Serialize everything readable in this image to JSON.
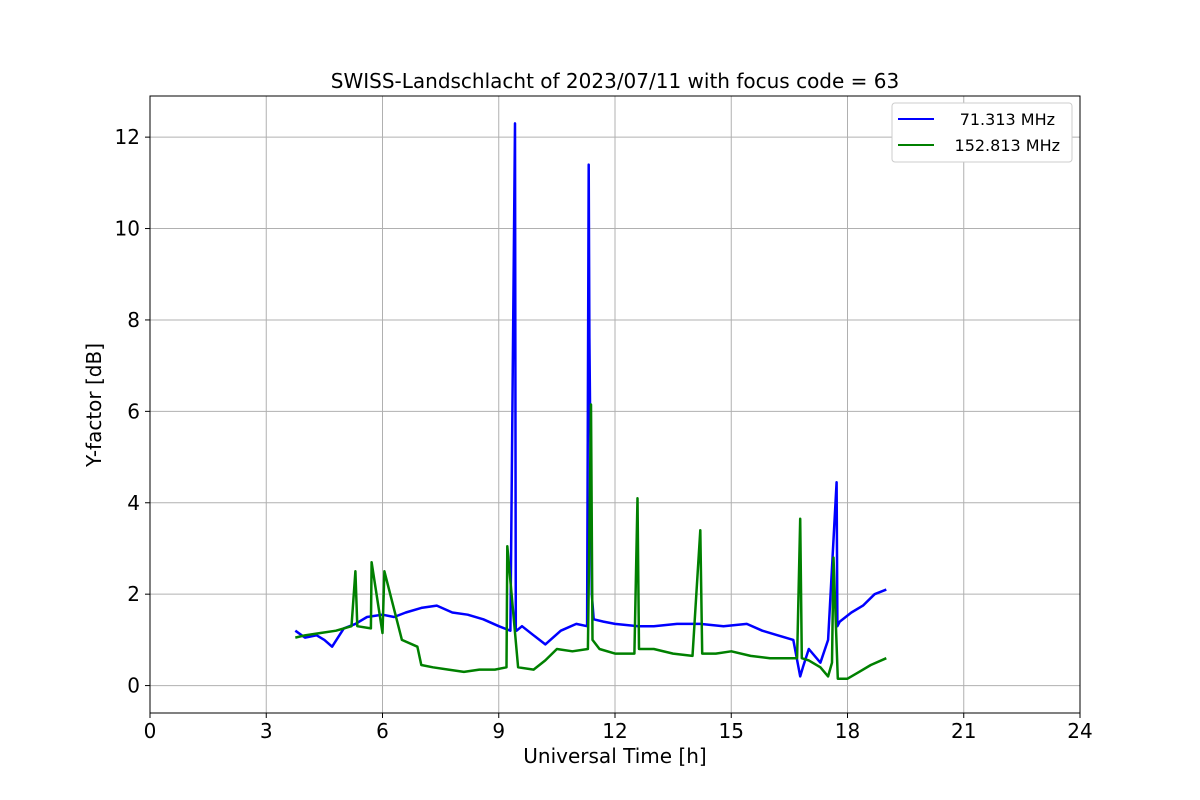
{
  "chart_data": {
    "type": "line",
    "title": "SWISS-Landschlacht of 2023/07/11 with focus code = 63",
    "xlabel": "Universal Time [h]",
    "ylabel": "Y-factor [dB]",
    "xlim": [
      0,
      24
    ],
    "ylim": [
      -0.6,
      12.9
    ],
    "xticks": [
      0,
      3,
      6,
      9,
      12,
      15,
      18,
      21,
      24
    ],
    "yticks": [
      0,
      2,
      4,
      6,
      8,
      10,
      12
    ],
    "grid": true,
    "legend_position": "top-right",
    "series": [
      {
        "name": "71.313 MHz",
        "color": "#0000ff",
        "x": [
          3.75,
          4.0,
          4.3,
          4.5,
          4.7,
          5.0,
          5.3,
          5.6,
          6.0,
          6.3,
          6.6,
          7.0,
          7.4,
          7.8,
          8.2,
          8.6,
          9.0,
          9.3,
          9.42,
          9.44,
          9.46,
          9.6,
          9.9,
          10.2,
          10.6,
          11.0,
          11.28,
          11.32,
          11.34,
          11.4,
          11.45,
          11.7,
          12.0,
          12.6,
          13.0,
          13.6,
          14.2,
          14.8,
          15.4,
          15.8,
          16.2,
          16.6,
          16.78,
          16.85,
          17.0,
          17.3,
          17.5,
          17.72,
          17.74,
          17.8,
          18.1,
          18.4,
          18.7,
          19.0
        ],
        "values": [
          1.2,
          1.05,
          1.1,
          1.0,
          0.85,
          1.25,
          1.35,
          1.5,
          1.55,
          1.5,
          1.6,
          1.7,
          1.75,
          1.6,
          1.55,
          1.45,
          1.3,
          1.2,
          12.3,
          1.25,
          1.2,
          1.3,
          1.1,
          0.9,
          1.2,
          1.35,
          1.3,
          11.4,
          7.6,
          2.0,
          1.45,
          1.4,
          1.35,
          1.3,
          1.3,
          1.35,
          1.35,
          1.3,
          1.35,
          1.2,
          1.1,
          1.0,
          0.2,
          0.4,
          0.8,
          0.5,
          1.0,
          4.45,
          1.3,
          1.4,
          1.6,
          1.75,
          2.0,
          2.1
        ]
      },
      {
        "name": "152.813 MHz",
        "color": "#008000",
        "x": [
          3.75,
          4.0,
          4.4,
          4.8,
          5.2,
          5.3,
          5.35,
          5.7,
          5.72,
          6.0,
          6.05,
          6.5,
          6.9,
          7.0,
          7.3,
          7.7,
          8.1,
          8.5,
          8.9,
          9.2,
          9.22,
          9.5,
          9.9,
          10.2,
          10.5,
          10.9,
          11.3,
          11.38,
          11.42,
          11.6,
          12.0,
          12.5,
          12.58,
          12.62,
          13.0,
          13.5,
          14.0,
          14.2,
          14.25,
          14.6,
          15.0,
          15.5,
          16.0,
          16.5,
          16.7,
          16.78,
          16.82,
          17.0,
          17.3,
          17.5,
          17.6,
          17.64,
          17.75,
          18.0,
          18.3,
          18.6,
          19.0
        ],
        "values": [
          1.05,
          1.1,
          1.15,
          1.2,
          1.3,
          2.5,
          1.3,
          1.25,
          2.7,
          1.15,
          2.5,
          1.0,
          0.85,
          0.45,
          0.4,
          0.35,
          0.3,
          0.35,
          0.35,
          0.4,
          3.05,
          0.4,
          0.35,
          0.55,
          0.8,
          0.75,
          0.8,
          6.15,
          1.0,
          0.8,
          0.7,
          0.7,
          4.1,
          0.8,
          0.8,
          0.7,
          0.65,
          3.4,
          0.7,
          0.7,
          0.75,
          0.65,
          0.6,
          0.6,
          0.6,
          3.65,
          0.6,
          0.55,
          0.4,
          0.2,
          0.5,
          2.8,
          0.15,
          0.15,
          0.3,
          0.45,
          0.6
        ]
      }
    ]
  }
}
